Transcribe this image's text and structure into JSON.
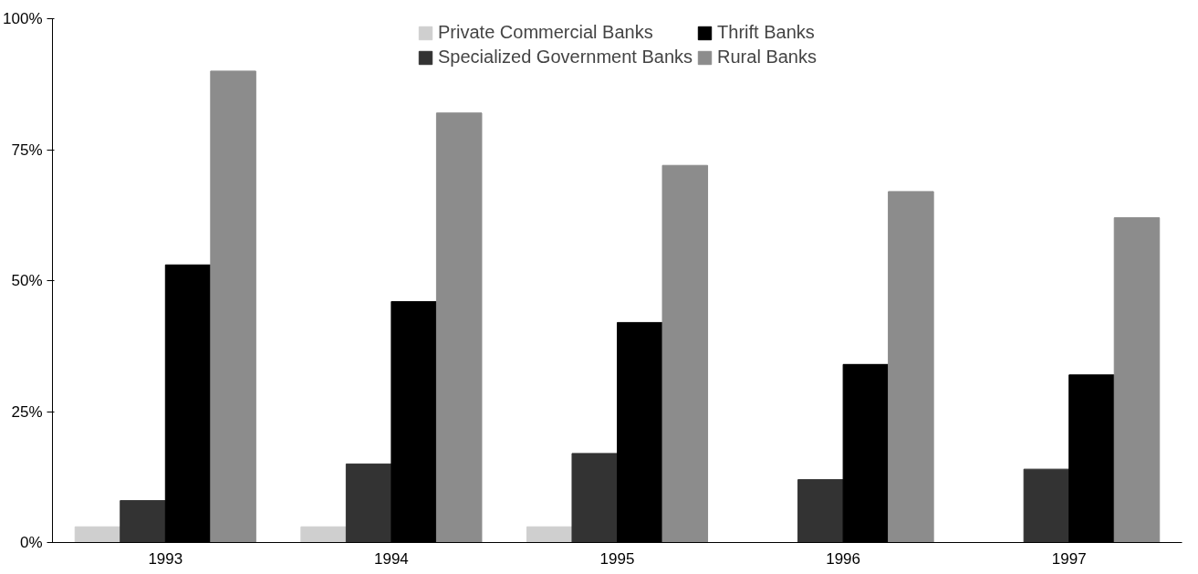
{
  "chart_data": {
    "type": "bar",
    "categories": [
      "1993",
      "1994",
      "1995",
      "1996",
      "1997"
    ],
    "series": [
      {
        "name": "Private Commercial Banks",
        "color": "#cfcfcf",
        "values": [
          3,
          3,
          3,
          null,
          null
        ]
      },
      {
        "name": "Specialized Government Banks",
        "color": "#333333",
        "values": [
          8,
          15,
          17,
          12,
          14
        ]
      },
      {
        "name": "Thrift Banks",
        "color": "#000000",
        "values": [
          53,
          46,
          42,
          34,
          32
        ]
      },
      {
        "name": "Rural Banks",
        "color": "#8c8c8c",
        "values": [
          90,
          82,
          72,
          67,
          62
        ]
      }
    ],
    "ylim": [
      0,
      100
    ],
    "yticks": [
      {
        "value": 0,
        "label": "0%"
      },
      {
        "value": 25,
        "label": "25%"
      },
      {
        "value": 50,
        "label": "50%"
      },
      {
        "value": 75,
        "label": "75%"
      },
      {
        "value": 100,
        "label": "100%"
      }
    ],
    "grid": false,
    "legend": "top"
  }
}
